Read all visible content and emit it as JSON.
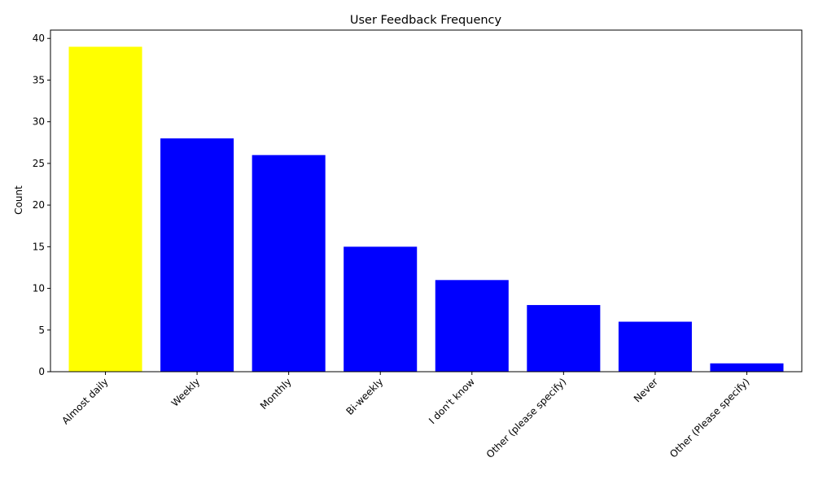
{
  "chart_data": {
    "type": "bar",
    "title": "User Feedback Frequency",
    "xlabel": "",
    "ylabel": "Count",
    "categories": [
      "Almost daily",
      "Weekly",
      "Monthly",
      "Bi-weekly",
      "I don't know",
      "Other (please specify)",
      "Never",
      "Other (Please specify)"
    ],
    "values": [
      39,
      28,
      26,
      15,
      11,
      8,
      6,
      1
    ],
    "colors": [
      "#ffff00",
      "#0000ff",
      "#0000ff",
      "#0000ff",
      "#0000ff",
      "#0000ff",
      "#0000ff",
      "#0000ff"
    ],
    "ylim": [
      0,
      41
    ],
    "yticks": [
      0,
      5,
      10,
      15,
      20,
      25,
      30,
      35,
      40
    ],
    "grid": false,
    "legend": "none"
  }
}
